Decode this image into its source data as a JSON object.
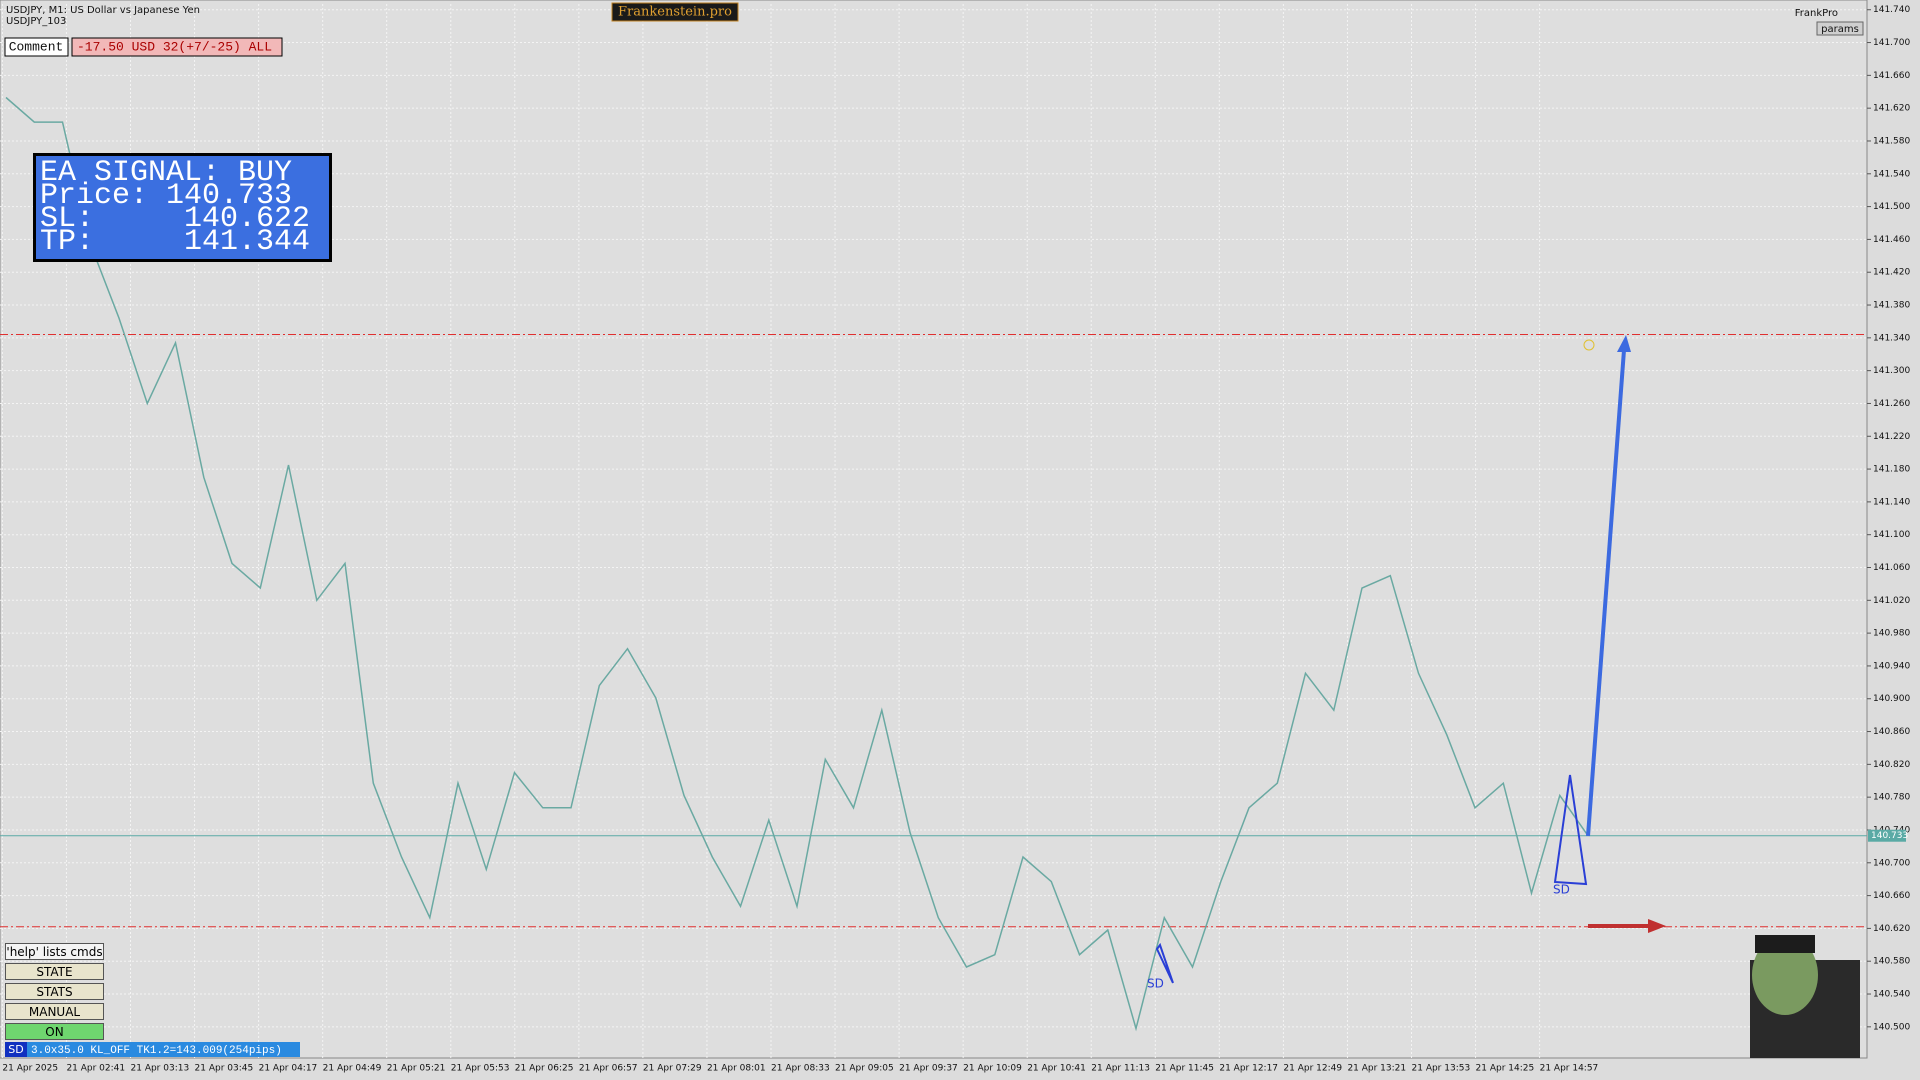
{
  "header": {
    "symbol": "USDJPY, M1:  US Dollar vs Japanese Yen",
    "account": "USDJPY_103",
    "brand": "Frankenstein.pro",
    "profile": "FrankPro",
    "params": "params"
  },
  "comment": {
    "label": "Comment",
    "value": "-17.50 USD 32(+7/-25) ALL"
  },
  "signal": {
    "lines": [
      "EA SIGNAL: BUY",
      "Price: 140.733",
      "SL:     140.622",
      "TP:     141.344"
    ]
  },
  "panel": {
    "help": "'help' lists cmds",
    "buttons": [
      "STATE",
      "STATS",
      "MANUAL",
      "ON"
    ]
  },
  "status": {
    "tag": "SD",
    "text": "3.0x35.0 KL_OFF TK1.2=143.009(254pips)"
  },
  "patterns": [
    "SD",
    "SD"
  ],
  "chart_data": {
    "type": "line",
    "series": [
      {
        "name": "USDJPY",
        "color": "#6aa9a2",
        "values": [
          141.633,
          141.603,
          141.603,
          141.453,
          141.364,
          141.26,
          141.334,
          141.17,
          141.065,
          141.035,
          141.185,
          141.02,
          141.065,
          140.797,
          140.707,
          140.633,
          140.797,
          140.692,
          140.81,
          140.767,
          140.767,
          140.916,
          140.961,
          140.901,
          140.782,
          140.707,
          140.647,
          140.752,
          140.647,
          140.826,
          140.767,
          140.886,
          140.737,
          140.633,
          140.573,
          140.588,
          140.707,
          140.677,
          140.588,
          140.618,
          140.498,
          140.633,
          140.573,
          140.677,
          140.767,
          140.797,
          140.931,
          140.886,
          141.035,
          141.05,
          140.931,
          140.856,
          140.767,
          140.797,
          140.663,
          140.782,
          140.733
        ]
      }
    ],
    "ylim": [
      140.462,
      141.747
    ],
    "yticks": [
      {
        "value": 141.74,
        "label": "141.740"
      },
      {
        "value": 141.7,
        "label": "141.700"
      },
      {
        "value": 141.66,
        "label": "141.660"
      },
      {
        "value": 141.62,
        "label": "141.620"
      },
      {
        "value": 141.58,
        "label": "141.580"
      },
      {
        "value": 141.54,
        "label": "141.540"
      },
      {
        "value": 141.5,
        "label": "141.500"
      },
      {
        "value": 141.46,
        "label": "141.460"
      },
      {
        "value": 141.42,
        "label": "141.420"
      },
      {
        "value": 141.38,
        "label": "141.380"
      },
      {
        "value": 141.34,
        "label": "141.340"
      },
      {
        "value": 141.3,
        "label": "141.300"
      },
      {
        "value": 141.26,
        "label": "141.260"
      },
      {
        "value": 141.22,
        "label": "141.220"
      },
      {
        "value": 141.18,
        "label": "141.180"
      },
      {
        "value": 141.14,
        "label": "141.140"
      },
      {
        "value": 141.1,
        "label": "141.100"
      },
      {
        "value": 141.06,
        "label": "141.060"
      },
      {
        "value": 141.02,
        "label": "141.020"
      },
      {
        "value": 140.98,
        "label": "140.980"
      },
      {
        "value": 140.94,
        "label": "140.940"
      },
      {
        "value": 140.9,
        "label": "140.900"
      },
      {
        "value": 140.86,
        "label": "140.860"
      },
      {
        "value": 140.82,
        "label": "140.820"
      },
      {
        "value": 140.78,
        "label": "140.780"
      },
      {
        "value": 140.74,
        "label": "140.740"
      },
      {
        "value": 140.7,
        "label": "140.700"
      },
      {
        "value": 140.66,
        "label": "140.660"
      },
      {
        "value": 140.62,
        "label": "140.620"
      },
      {
        "value": 140.58,
        "label": "140.580"
      },
      {
        "value": 140.54,
        "label": "140.540"
      },
      {
        "value": 140.5,
        "label": "140.500"
      }
    ],
    "time_axis": [
      "21 Apr 2025",
      "21 Apr 02:41",
      "21 Apr 03:13",
      "21 Apr 03:45",
      "21 Apr 04:17",
      "21 Apr 04:49",
      "21 Apr 05:21",
      "21 Apr 05:53",
      "21 Apr 06:25",
      "21 Apr 06:57",
      "21 Apr 07:29",
      "21 Apr 08:01",
      "21 Apr 08:33",
      "21 Apr 09:05",
      "21 Apr 09:37",
      "21 Apr 10:09",
      "21 Apr 10:41",
      "21 Apr 11:13",
      "21 Apr 11:45",
      "21 Apr 12:17",
      "21 Apr 12:49",
      "21 Apr 13:21",
      "21 Apr 13:53",
      "21 Apr 14:25",
      "21 Apr 14:57"
    ],
    "tp_level": 141.344,
    "sl_level": 140.622,
    "bid": {
      "value": 140.733,
      "label": "140.733"
    },
    "grid": true
  }
}
